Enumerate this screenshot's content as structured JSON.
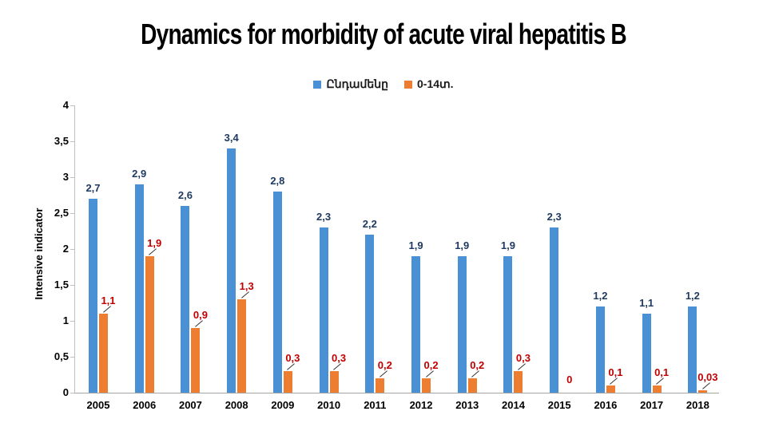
{
  "title": "Dynamics for morbidity of acute viral hepatitis B",
  "legend": {
    "items": [
      {
        "label": "Ընդամենը",
        "color": "#4A90D5"
      },
      {
        "label": "0-14տ.",
        "color": "#ED7D31"
      }
    ]
  },
  "chart_data": {
    "type": "bar",
    "title": "Dynamics for morbidity of acute viral hepatitis B",
    "xlabel": "",
    "ylabel": "Intensive indicator",
    "ylim": [
      0,
      4
    ],
    "grid": false,
    "legend_position": "top",
    "yticks": [
      {
        "value": 4,
        "label": "4"
      },
      {
        "value": 3.5,
        "label": "3,5"
      },
      {
        "value": 3,
        "label": "3"
      },
      {
        "value": 2.5,
        "label": "2,5"
      },
      {
        "value": 2,
        "label": "2"
      },
      {
        "value": 1.5,
        "label": "1,5"
      },
      {
        "value": 1,
        "label": "1"
      },
      {
        "value": 0.5,
        "label": "0,5"
      },
      {
        "value": 0,
        "label": "0"
      }
    ],
    "categories": [
      "2005",
      "2006",
      "2007",
      "2008",
      "2009",
      "2010",
      "2011",
      "2012",
      "2013",
      "2014",
      "2015",
      "2016",
      "2017",
      "2018"
    ],
    "series": [
      {
        "name": "Ընդամենը",
        "color": "#4A90D5",
        "label_color": "#1F3A60",
        "values": [
          2.7,
          2.9,
          2.6,
          3.4,
          2.8,
          2.3,
          2.2,
          1.9,
          1.9,
          1.9,
          2.3,
          1.2,
          1.1,
          1.2
        ],
        "labels": [
          "2,7",
          "2,9",
          "2,6",
          "3,4",
          "2,8",
          "2,3",
          "2,2",
          "1,9",
          "1,9",
          "1,9",
          "2,3",
          "1,2",
          "1,1",
          "1,2"
        ],
        "leader_lines": [
          false,
          false,
          false,
          false,
          false,
          false,
          false,
          false,
          false,
          false,
          false,
          false,
          false,
          false
        ]
      },
      {
        "name": "0-14տ.",
        "color": "#ED7D31",
        "label_color": "#C00000",
        "values": [
          1.1,
          1.9,
          0.9,
          1.3,
          0.3,
          0.3,
          0.2,
          0.2,
          0.2,
          0.3,
          0,
          0.1,
          0.1,
          0.03
        ],
        "labels": [
          "1,1",
          "1,9",
          "0,9",
          "1,3",
          "0,3",
          "0,3",
          "0,2",
          "0,2",
          "0,2",
          "0,3",
          "0",
          "0,1",
          "0,1",
          "0,03"
        ],
        "leader_lines": [
          true,
          true,
          true,
          true,
          true,
          true,
          true,
          true,
          true,
          true,
          false,
          true,
          true,
          true
        ]
      }
    ]
  }
}
